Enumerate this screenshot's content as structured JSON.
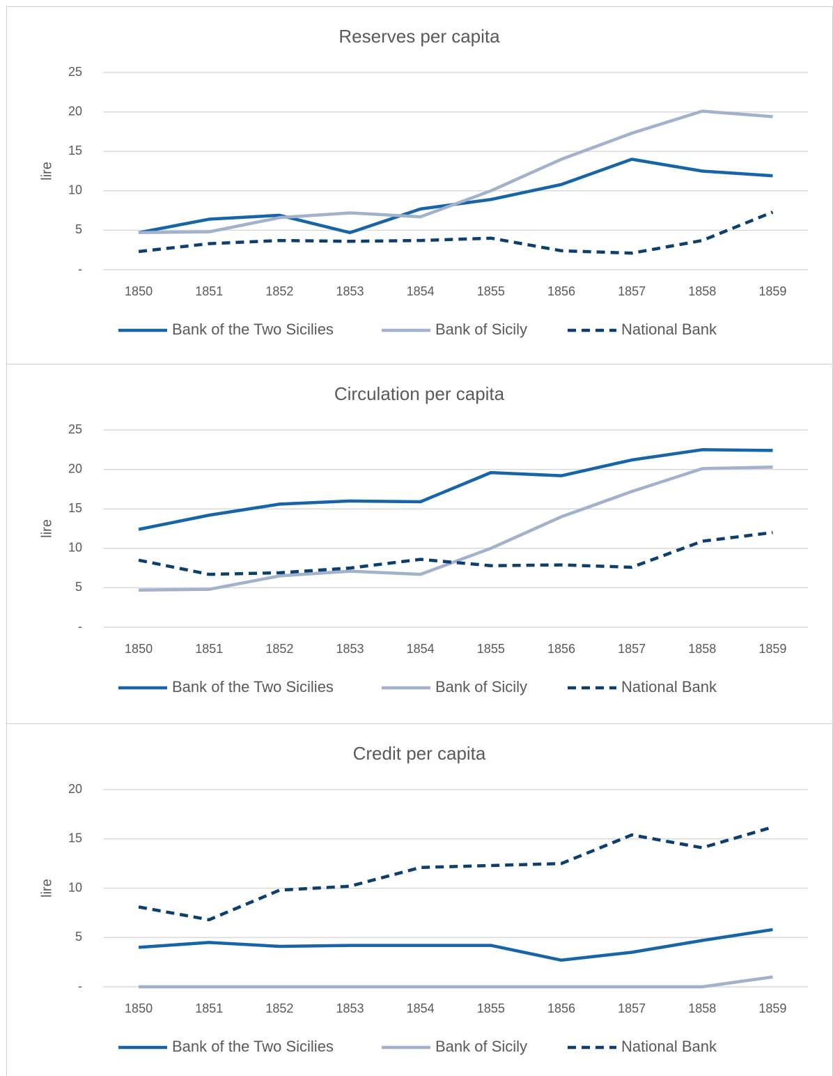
{
  "chart_data": [
    {
      "type": "line",
      "title": "Reserves per capita",
      "y_label": "lire",
      "categories": [
        "1850",
        "1851",
        "1852",
        "1853",
        "1854",
        "1855",
        "1856",
        "1857",
        "1858",
        "1859"
      ],
      "series": [
        {
          "name": "Bank of the Two Sicilies",
          "color": "#1565a8",
          "style": "solid",
          "values": [
            4.7,
            6.4,
            6.9,
            4.7,
            7.7,
            8.9,
            10.8,
            14.0,
            12.5,
            11.9
          ]
        },
        {
          "name": "Bank of Sicily",
          "color": "#a2b1cc",
          "style": "solid",
          "values": [
            4.7,
            4.8,
            6.6,
            7.2,
            6.7,
            10.0,
            14.0,
            17.3,
            20.1,
            19.4
          ]
        },
        {
          "name": "National Bank",
          "color": "#0d3f6e",
          "style": "dashed",
          "values": [
            2.3,
            3.3,
            3.7,
            3.6,
            3.7,
            4.0,
            2.4,
            2.1,
            3.7,
            7.3
          ]
        }
      ],
      "ylim": [
        0,
        25
      ],
      "yticks": [
        {
          "value": 0,
          "label": "-"
        },
        5,
        10,
        15,
        20,
        25
      ],
      "grid": true,
      "legend": "bottom"
    },
    {
      "type": "line",
      "title": "Circulation per capita",
      "y_label": "lire",
      "categories": [
        "1850",
        "1851",
        "1852",
        "1853",
        "1854",
        "1855",
        "1856",
        "1857",
        "1858",
        "1859"
      ],
      "series": [
        {
          "name": "Bank of the Two Sicilies",
          "color": "#1565a8",
          "style": "solid",
          "values": [
            12.4,
            14.2,
            15.6,
            16.0,
            15.9,
            19.6,
            19.2,
            21.2,
            22.5,
            22.4
          ]
        },
        {
          "name": "Bank of Sicily",
          "color": "#a2b1cc",
          "style": "solid",
          "values": [
            4.7,
            4.8,
            6.5,
            7.1,
            6.7,
            10.0,
            14.0,
            17.2,
            20.1,
            20.3
          ]
        },
        {
          "name": "National Bank",
          "color": "#0d3f6e",
          "style": "dashed",
          "values": [
            8.5,
            6.7,
            6.9,
            7.5,
            8.6,
            7.8,
            7.9,
            7.6,
            10.9,
            12.0
          ]
        }
      ],
      "ylim": [
        0,
        25
      ],
      "yticks": [
        {
          "value": 0,
          "label": "-"
        },
        5,
        10,
        15,
        20,
        25
      ],
      "grid": true,
      "legend": "bottom"
    },
    {
      "type": "line",
      "title": "Credit per capita",
      "y_label": "lire",
      "categories": [
        "1850",
        "1851",
        "1852",
        "1853",
        "1854",
        "1855",
        "1856",
        "1857",
        "1858",
        "1859"
      ],
      "series": [
        {
          "name": "Bank of the Two Sicilies",
          "color": "#1565a8",
          "style": "solid",
          "values": [
            4.0,
            4.5,
            4.1,
            4.2,
            4.2,
            4.2,
            2.7,
            3.5,
            4.7,
            5.8
          ]
        },
        {
          "name": "Bank of Sicily",
          "color": "#a2b1cc",
          "style": "solid",
          "values": [
            0,
            0,
            0,
            0,
            0,
            0,
            0,
            0,
            0,
            1.0
          ]
        },
        {
          "name": "National Bank",
          "color": "#0d3f6e",
          "style": "dashed",
          "values": [
            8.1,
            6.8,
            9.8,
            10.2,
            12.1,
            12.3,
            12.5,
            15.4,
            14.1,
            16.2
          ]
        }
      ],
      "ylim": [
        0,
        20
      ],
      "yticks": [
        {
          "value": 0,
          "label": "-"
        },
        5,
        10,
        15,
        20
      ],
      "grid": true,
      "legend": "bottom"
    }
  ]
}
